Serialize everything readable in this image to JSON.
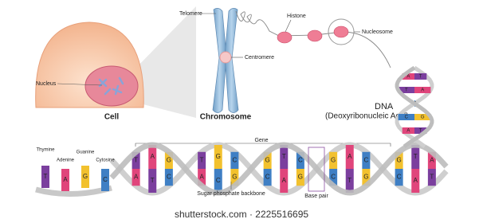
{
  "labels": {
    "telomere": "Telomere",
    "histone": "Histone",
    "nucleosome": "Nucleosome",
    "centromere": "Centromere",
    "nucleus": "Nucleus",
    "cell": "Cell",
    "chromosome": "Chromosome",
    "dna": "DNA",
    "dna_full": "(Deoxyribonucleic Acid)",
    "gene": "Gene",
    "backbone": "Sugar phosphate backbone",
    "base_pair": "Base pair"
  },
  "legend": [
    {
      "name": "Thymine",
      "letter": "T"
    },
    {
      "name": "Adenine",
      "letter": "A"
    },
    {
      "name": "Guanine",
      "letter": "G"
    },
    {
      "name": "Cytosine",
      "letter": "C"
    }
  ],
  "helix_bases": [
    [
      "T",
      "A"
    ],
    [
      "A",
      "T"
    ],
    [
      "G",
      "C"
    ],
    [
      "T",
      "A"
    ],
    [
      "G",
      "C"
    ],
    [
      "C",
      "G"
    ],
    [
      "G",
      "C"
    ],
    [
      "T",
      "A"
    ],
    [
      "C",
      "G"
    ],
    [
      "G",
      "C"
    ],
    [
      "A",
      "T"
    ],
    [
      "C",
      "G"
    ],
    [
      "G",
      "C"
    ],
    [
      "T",
      "A"
    ],
    [
      "A",
      "T"
    ]
  ],
  "upper_helix_bases": [
    [
      "A",
      "T"
    ],
    [
      "T",
      "A"
    ],
    [
      "G",
      "C"
    ],
    [
      "C",
      "G"
    ],
    [
      "A",
      "T"
    ]
  ],
  "watermark": "shutterstock.com · 2225516695"
}
